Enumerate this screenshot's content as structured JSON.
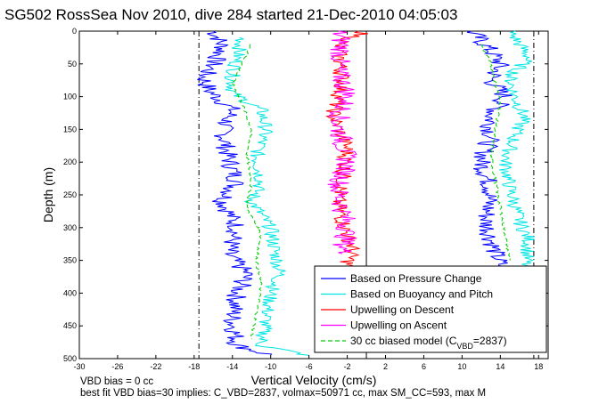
{
  "chart_data": {
    "type": "line",
    "title": "SG502 RossSea Nov 2010, dive 284 started 21-Dec-2010 04:05:03",
    "xlabel": "Vertical Velocity (cm/s)",
    "ylabel": "Depth (m)",
    "xlim": [
      -30,
      19
    ],
    "ylim": [
      0,
      500
    ],
    "y_reversed": true,
    "x_ticks": [
      "-30",
      "-26",
      "-22",
      "-18",
      "-14",
      "-10",
      "-6",
      "-2",
      "2",
      "6",
      "10",
      "14",
      "18"
    ],
    "x_tick_values": [
      -30,
      -26,
      -22,
      -18,
      -14,
      -10,
      -6,
      -2,
      2,
      6,
      10,
      14,
      18
    ],
    "y_ticks": [
      "0",
      "50",
      "100",
      "150",
      "200",
      "250",
      "300",
      "350",
      "400",
      "450",
      "500"
    ],
    "y_tick_values": [
      0,
      50,
      100,
      150,
      200,
      250,
      300,
      350,
      400,
      450,
      500
    ],
    "grid": false,
    "legend_position": "bottom-right",
    "vertical_lines": [
      {
        "x": -17.5,
        "style": "dash-dot"
      },
      {
        "x": 0,
        "style": "solid"
      },
      {
        "x": 17.5,
        "style": "dash-dot"
      }
    ],
    "series": [
      {
        "name": "Based on Pressure Change",
        "color": "#0000ff",
        "values_descent": [
          [
            -16,
            0
          ],
          [
            -15.5,
            10
          ],
          [
            -15,
            25
          ],
          [
            -16,
            50
          ],
          [
            -17,
            70
          ],
          [
            -16.5,
            90
          ],
          [
            -14,
            120
          ],
          [
            -15,
            150
          ],
          [
            -14.5,
            190
          ],
          [
            -13.5,
            230
          ],
          [
            -15,
            260
          ],
          [
            -13.5,
            300
          ],
          [
            -14.5,
            340
          ],
          [
            -12.5,
            370
          ],
          [
            -13.5,
            400
          ],
          [
            -14,
            440
          ],
          [
            -13.5,
            480
          ],
          [
            -10,
            495
          ]
        ],
        "values_ascent": [
          [
            11,
            0
          ],
          [
            12,
            15
          ],
          [
            13,
            30
          ],
          [
            14,
            50
          ],
          [
            13,
            75
          ],
          [
            14.5,
            100
          ],
          [
            13,
            130
          ],
          [
            13,
            160
          ],
          [
            12,
            200
          ],
          [
            13,
            240
          ],
          [
            12.5,
            290
          ],
          [
            13.5,
            340
          ],
          [
            14.5,
            370
          ]
        ]
      },
      {
        "name": "Based on Buoyancy and Pitch",
        "color": "#00e5e5",
        "values_descent": [
          [
            -13,
            10
          ],
          [
            -13.5,
            40
          ],
          [
            -14,
            70
          ],
          [
            -14,
            95
          ],
          [
            -11,
            120
          ],
          [
            -10.5,
            150
          ],
          [
            -11.5,
            190
          ],
          [
            -11,
            230
          ],
          [
            -12,
            260
          ],
          [
            -10,
            300
          ],
          [
            -9.5,
            340
          ],
          [
            -9,
            370
          ],
          [
            -10,
            400
          ],
          [
            -10.5,
            440
          ],
          [
            -11,
            480
          ],
          [
            -6,
            495
          ]
        ],
        "values_ascent": [
          [
            15,
            0
          ],
          [
            16,
            20
          ],
          [
            17,
            40
          ],
          [
            15,
            70
          ],
          [
            15.5,
            100
          ],
          [
            16.5,
            130
          ],
          [
            15.5,
            160
          ],
          [
            14.5,
            200
          ],
          [
            15,
            240
          ],
          [
            16,
            290
          ],
          [
            17,
            320
          ],
          [
            16.5,
            370
          ]
        ]
      },
      {
        "name": "Upwelling on Descent",
        "color": "#ff0000",
        "values": [
          [
            0,
            0
          ],
          [
            -3,
            20
          ],
          [
            -2.5,
            80
          ],
          [
            -3.5,
            130
          ],
          [
            -2,
            180
          ],
          [
            -2.5,
            230
          ],
          [
            -3,
            260
          ],
          [
            -2.5,
            290
          ],
          [
            -1.5,
            330
          ],
          [
            -2,
            360
          ]
        ]
      },
      {
        "name": "Upwelling on Ascent",
        "color": "#ff00ff",
        "values": [
          [
            -3,
            0
          ],
          [
            -2.5,
            20
          ],
          [
            -3,
            60
          ],
          [
            -2,
            95
          ],
          [
            -3,
            140
          ],
          [
            -2.5,
            170
          ],
          [
            -2,
            200
          ],
          [
            -3,
            240
          ],
          [
            -2,
            300
          ],
          [
            -2.5,
            340
          ]
        ]
      },
      {
        "name": "30 cc biased model (C",
        "sub": "VBD",
        "suffix": "=2837)",
        "color": "#00cc00",
        "dashed": true,
        "values_descent": [
          [
            -12,
            20
          ],
          [
            -13,
            50
          ],
          [
            -14,
            80
          ],
          [
            -13,
            110
          ],
          [
            -12,
            150
          ],
          [
            -12.5,
            190
          ],
          [
            -12,
            230
          ],
          [
            -12.5,
            270
          ],
          [
            -11,
            310
          ],
          [
            -11.5,
            350
          ],
          [
            -11,
            390
          ],
          [
            -11.5,
            430
          ],
          [
            -12,
            470
          ]
        ],
        "values_ascent": [
          [
            12,
            20
          ],
          [
            13,
            50
          ],
          [
            13.5,
            80
          ],
          [
            14,
            110
          ],
          [
            13.5,
            150
          ],
          [
            13,
            190
          ],
          [
            13.5,
            230
          ],
          [
            14,
            270
          ],
          [
            14.5,
            310
          ],
          [
            15,
            350
          ]
        ]
      }
    ],
    "annotations": [
      "VBD bias = 0 cc",
      "best fit VBD bias=30 implies: C_VBD=2837, volmax=50971 cc, max SM_CC=593, max M"
    ]
  }
}
